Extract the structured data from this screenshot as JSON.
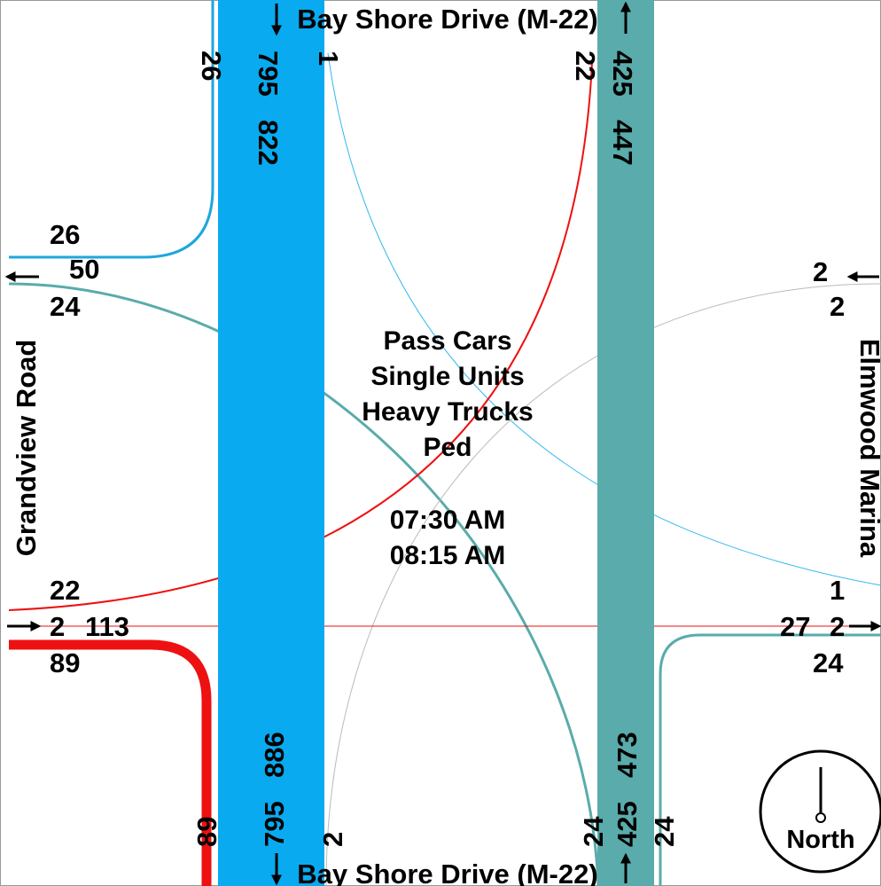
{
  "roads": {
    "north": "Bay Shore Drive (M-22)",
    "south": "Bay Shore Drive (M-22)",
    "west": "Grandview Road",
    "east": "Elmwood Marina"
  },
  "center": {
    "vehicle_classes": [
      "Pass Cars",
      "Single Units",
      "Heavy Trucks",
      "Ped"
    ],
    "start_time": "07:30 AM",
    "end_time": "08:15 AM"
  },
  "north_leg": {
    "right_turn_to_west": "26",
    "through_south": "795",
    "left_turn_to_east": "1",
    "total_in": "822",
    "from_west_right": "22",
    "through_north": "425",
    "total_out": "447"
  },
  "south_leg": {
    "from_west_left": "89",
    "through_south": "795",
    "from_east_right": "2",
    "total_out": "886",
    "left_turn": "24",
    "through_north": "425",
    "right_turn": "24",
    "total_in": "473"
  },
  "west_leg": {
    "from_north_right": "26",
    "total_out": "50",
    "from_east_through": "24",
    "left_turn": "22",
    "through": "2",
    "total_in": "113",
    "right_turn": "89"
  },
  "east_leg": {
    "total_in": "2",
    "right_turn": "2",
    "from_north_left": "1",
    "total_out": "27",
    "from_west_through": "2",
    "from_south_right": "24"
  },
  "compass": {
    "label": "North"
  },
  "colors": {
    "southbound": "#0aaaf0",
    "northbound": "#5aabab",
    "eastbound": "#ee1111",
    "westbound": "#aaaaaa",
    "north_right": "#1ea6dd"
  }
}
